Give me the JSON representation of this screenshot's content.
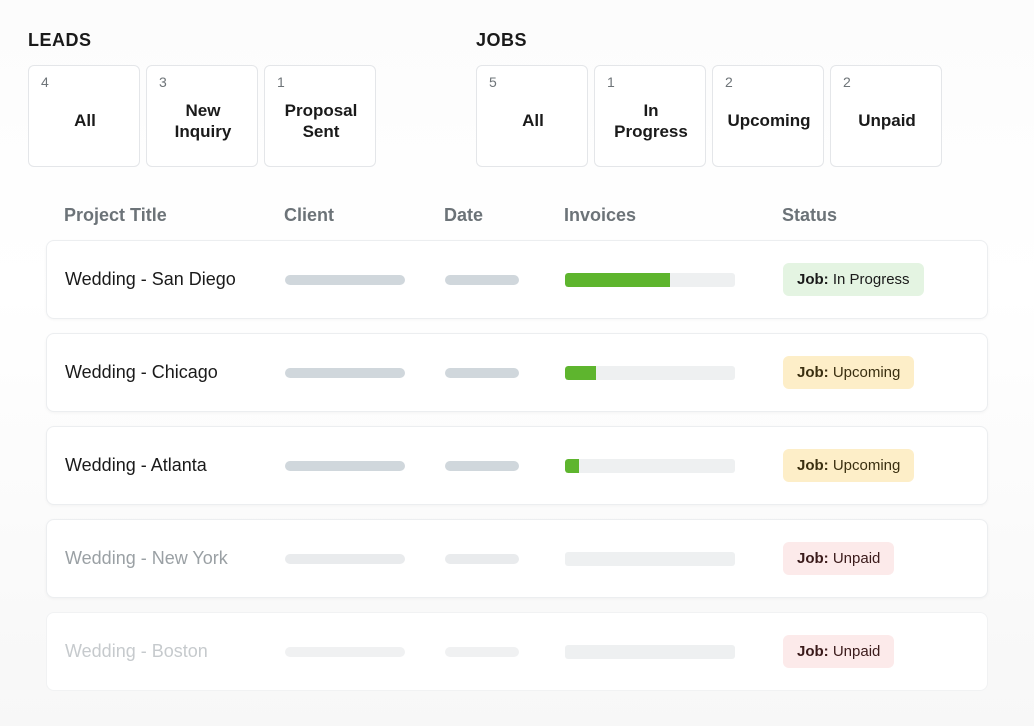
{
  "colors": {
    "card_border": "#e4e6e9",
    "row_border": "#eceef0",
    "text_muted": "#6c7378",
    "skeleton": "#d0d7dc",
    "skeleton_faded": "#e9ebed",
    "progress_track": "#eef0f1",
    "progress_fill": "#5eb52e",
    "badge_green_bg": "#e4f4e2",
    "badge_yellow_bg": "#fdeec8",
    "badge_red_bg": "#fceaea"
  },
  "leads": {
    "title": "LEADS",
    "cards": [
      {
        "count": "4",
        "label": "All"
      },
      {
        "count": "3",
        "label": "New Inquiry"
      },
      {
        "count": "1",
        "label": "Proposal Sent"
      }
    ]
  },
  "jobs": {
    "title": "JOBS",
    "cards": [
      {
        "count": "5",
        "label": "All"
      },
      {
        "count": "1",
        "label": "In Progress"
      },
      {
        "count": "2",
        "label": "Upcoming"
      },
      {
        "count": "2",
        "label": "Unpaid"
      }
    ]
  },
  "table": {
    "headers": {
      "project": "Project Title",
      "client": "Client",
      "date": "Date",
      "invoices": "Invoices",
      "status": "Status"
    },
    "rows": [
      {
        "title": "Wedding - San Diego",
        "invoice_pct": 62,
        "status_prefix": "Job:",
        "status_value": "In Progress",
        "status_variant": "green",
        "fade": "normal"
      },
      {
        "title": "Wedding - Chicago",
        "invoice_pct": 18,
        "status_prefix": "Job:",
        "status_value": "Upcoming",
        "status_variant": "yellow",
        "fade": "normal"
      },
      {
        "title": "Wedding - Atlanta",
        "invoice_pct": 8,
        "status_prefix": "Job:",
        "status_value": "Upcoming",
        "status_variant": "yellow",
        "fade": "normal"
      },
      {
        "title": "Wedding - New York",
        "invoice_pct": 0,
        "status_prefix": "Job:",
        "status_value": "Unpaid",
        "status_variant": "red",
        "fade": "faded"
      },
      {
        "title": "Wedding - Boston",
        "invoice_pct": 0,
        "status_prefix": "Job:",
        "status_value": "Unpaid",
        "status_variant": "red",
        "fade": "faded2"
      }
    ]
  }
}
